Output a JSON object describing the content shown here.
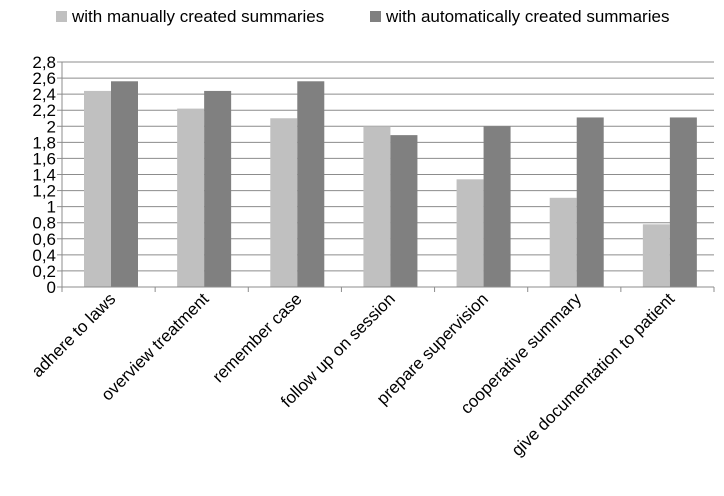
{
  "chart_data": {
    "type": "bar",
    "title": "",
    "xlabel": "",
    "ylabel": "",
    "categories": [
      "adhere to laws",
      "overview treatment",
      "remember case",
      "follow up on session",
      "prepare supervision",
      "cooperative summary",
      "give documentation to patient"
    ],
    "series": [
      {
        "name": "with manually created summaries",
        "color": "#c0c0c0",
        "values": [
          2.44,
          2.22,
          2.1,
          2.0,
          1.34,
          1.11,
          0.78
        ]
      },
      {
        "name": "with automatically created summaries",
        "color": "#808080",
        "values": [
          2.56,
          2.44,
          2.56,
          1.89,
          2.0,
          2.11,
          2.11
        ]
      }
    ],
    "ylim": [
      0,
      2.8
    ],
    "yticks": [
      "0",
      "0,2",
      "0,4",
      "0,6",
      "0,8",
      "1",
      "1,2",
      "1,4",
      "1,6",
      "1,8",
      "2",
      "2,2",
      "2,4",
      "2,6",
      "2,8"
    ],
    "grid": true,
    "legend_position": "top"
  }
}
